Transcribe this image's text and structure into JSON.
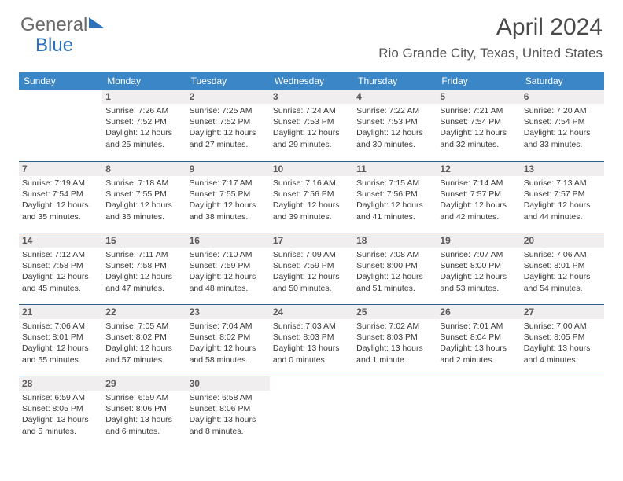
{
  "brand": {
    "part1": "General",
    "part2": "Blue"
  },
  "title": "April 2024",
  "location": "Rio Grande City, Texas, United States",
  "colors": {
    "header_bg": "#3b86c6",
    "header_text": "#ffffff",
    "daynum_bg": "#f0eeee",
    "row_divider": "#2f5f8a",
    "logo_blue": "#2f71b8",
    "body_text": "#333333"
  },
  "day_headers": [
    "Sunday",
    "Monday",
    "Tuesday",
    "Wednesday",
    "Thursday",
    "Friday",
    "Saturday"
  ],
  "weeks": [
    [
      {
        "n": "",
        "lines": []
      },
      {
        "n": "1",
        "lines": [
          "Sunrise: 7:26 AM",
          "Sunset: 7:52 PM",
          "Daylight: 12 hours and 25 minutes."
        ]
      },
      {
        "n": "2",
        "lines": [
          "Sunrise: 7:25 AM",
          "Sunset: 7:52 PM",
          "Daylight: 12 hours and 27 minutes."
        ]
      },
      {
        "n": "3",
        "lines": [
          "Sunrise: 7:24 AM",
          "Sunset: 7:53 PM",
          "Daylight: 12 hours and 29 minutes."
        ]
      },
      {
        "n": "4",
        "lines": [
          "Sunrise: 7:22 AM",
          "Sunset: 7:53 PM",
          "Daylight: 12 hours and 30 minutes."
        ]
      },
      {
        "n": "5",
        "lines": [
          "Sunrise: 7:21 AM",
          "Sunset: 7:54 PM",
          "Daylight: 12 hours and 32 minutes."
        ]
      },
      {
        "n": "6",
        "lines": [
          "Sunrise: 7:20 AM",
          "Sunset: 7:54 PM",
          "Daylight: 12 hours and 33 minutes."
        ]
      }
    ],
    [
      {
        "n": "7",
        "lines": [
          "Sunrise: 7:19 AM",
          "Sunset: 7:54 PM",
          "Daylight: 12 hours and 35 minutes."
        ]
      },
      {
        "n": "8",
        "lines": [
          "Sunrise: 7:18 AM",
          "Sunset: 7:55 PM",
          "Daylight: 12 hours and 36 minutes."
        ]
      },
      {
        "n": "9",
        "lines": [
          "Sunrise: 7:17 AM",
          "Sunset: 7:55 PM",
          "Daylight: 12 hours and 38 minutes."
        ]
      },
      {
        "n": "10",
        "lines": [
          "Sunrise: 7:16 AM",
          "Sunset: 7:56 PM",
          "Daylight: 12 hours and 39 minutes."
        ]
      },
      {
        "n": "11",
        "lines": [
          "Sunrise: 7:15 AM",
          "Sunset: 7:56 PM",
          "Daylight: 12 hours and 41 minutes."
        ]
      },
      {
        "n": "12",
        "lines": [
          "Sunrise: 7:14 AM",
          "Sunset: 7:57 PM",
          "Daylight: 12 hours and 42 minutes."
        ]
      },
      {
        "n": "13",
        "lines": [
          "Sunrise: 7:13 AM",
          "Sunset: 7:57 PM",
          "Daylight: 12 hours and 44 minutes."
        ]
      }
    ],
    [
      {
        "n": "14",
        "lines": [
          "Sunrise: 7:12 AM",
          "Sunset: 7:58 PM",
          "Daylight: 12 hours and 45 minutes."
        ]
      },
      {
        "n": "15",
        "lines": [
          "Sunrise: 7:11 AM",
          "Sunset: 7:58 PM",
          "Daylight: 12 hours and 47 minutes."
        ]
      },
      {
        "n": "16",
        "lines": [
          "Sunrise: 7:10 AM",
          "Sunset: 7:59 PM",
          "Daylight: 12 hours and 48 minutes."
        ]
      },
      {
        "n": "17",
        "lines": [
          "Sunrise: 7:09 AM",
          "Sunset: 7:59 PM",
          "Daylight: 12 hours and 50 minutes."
        ]
      },
      {
        "n": "18",
        "lines": [
          "Sunrise: 7:08 AM",
          "Sunset: 8:00 PM",
          "Daylight: 12 hours and 51 minutes."
        ]
      },
      {
        "n": "19",
        "lines": [
          "Sunrise: 7:07 AM",
          "Sunset: 8:00 PM",
          "Daylight: 12 hours and 53 minutes."
        ]
      },
      {
        "n": "20",
        "lines": [
          "Sunrise: 7:06 AM",
          "Sunset: 8:01 PM",
          "Daylight: 12 hours and 54 minutes."
        ]
      }
    ],
    [
      {
        "n": "21",
        "lines": [
          "Sunrise: 7:06 AM",
          "Sunset: 8:01 PM",
          "Daylight: 12 hours and 55 minutes."
        ]
      },
      {
        "n": "22",
        "lines": [
          "Sunrise: 7:05 AM",
          "Sunset: 8:02 PM",
          "Daylight: 12 hours and 57 minutes."
        ]
      },
      {
        "n": "23",
        "lines": [
          "Sunrise: 7:04 AM",
          "Sunset: 8:02 PM",
          "Daylight: 12 hours and 58 minutes."
        ]
      },
      {
        "n": "24",
        "lines": [
          "Sunrise: 7:03 AM",
          "Sunset: 8:03 PM",
          "Daylight: 13 hours and 0 minutes."
        ]
      },
      {
        "n": "25",
        "lines": [
          "Sunrise: 7:02 AM",
          "Sunset: 8:03 PM",
          "Daylight: 13 hours and 1 minute."
        ]
      },
      {
        "n": "26",
        "lines": [
          "Sunrise: 7:01 AM",
          "Sunset: 8:04 PM",
          "Daylight: 13 hours and 2 minutes."
        ]
      },
      {
        "n": "27",
        "lines": [
          "Sunrise: 7:00 AM",
          "Sunset: 8:05 PM",
          "Daylight: 13 hours and 4 minutes."
        ]
      }
    ],
    [
      {
        "n": "28",
        "lines": [
          "Sunrise: 6:59 AM",
          "Sunset: 8:05 PM",
          "Daylight: 13 hours and 5 minutes."
        ]
      },
      {
        "n": "29",
        "lines": [
          "Sunrise: 6:59 AM",
          "Sunset: 8:06 PM",
          "Daylight: 13 hours and 6 minutes."
        ]
      },
      {
        "n": "30",
        "lines": [
          "Sunrise: 6:58 AM",
          "Sunset: 8:06 PM",
          "Daylight: 13 hours and 8 minutes."
        ]
      },
      {
        "n": "",
        "lines": []
      },
      {
        "n": "",
        "lines": []
      },
      {
        "n": "",
        "lines": []
      },
      {
        "n": "",
        "lines": []
      }
    ]
  ]
}
